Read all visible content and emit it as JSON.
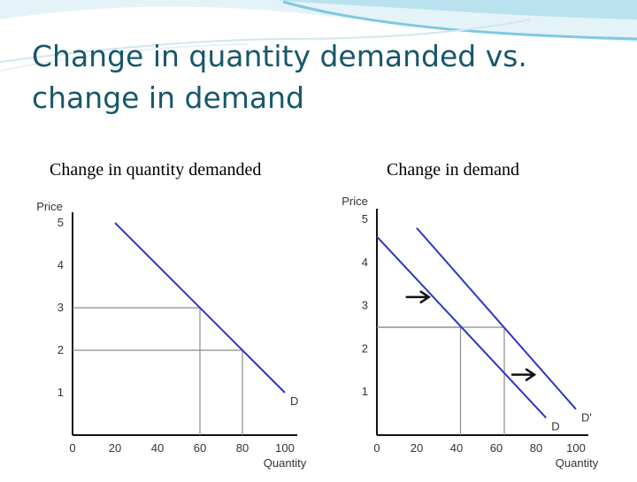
{
  "slide": {
    "title": "Change in quantity demanded vs. change in demand",
    "subtitle_left": "Change in quantity demanded",
    "subtitle_right": "Change in demand",
    "colors": {
      "title": "#17576a",
      "curve": "#2b35c8",
      "guide": "#8c8c8c",
      "accent_wave": "#7ec9e0"
    }
  },
  "chart_data": [
    {
      "type": "line",
      "ylabel": "Price",
      "xlabel": "Quantity",
      "xlim": [
        0,
        100
      ],
      "ylim": [
        0,
        5
      ],
      "x_ticks": [
        "0",
        "20",
        "40",
        "60",
        "80",
        "100"
      ],
      "y_ticks": [
        "1",
        "2",
        "3",
        "4",
        "5"
      ],
      "grid": false,
      "series": [
        {
          "name": "D",
          "x": [
            20,
            100
          ],
          "y": [
            5,
            1
          ]
        }
      ],
      "guides": [
        {
          "x": 60,
          "y": 3
        },
        {
          "x": 80,
          "y": 2
        }
      ],
      "arrows": []
    },
    {
      "type": "line",
      "ylabel": "Price",
      "xlabel": "Quantity",
      "xlim": [
        0,
        100
      ],
      "ylim": [
        0,
        5
      ],
      "x_ticks": [
        "0",
        "20",
        "40",
        "60",
        "80",
        "100"
      ],
      "y_ticks": [
        "1",
        "2",
        "3",
        "4",
        "5"
      ],
      "grid": false,
      "series": [
        {
          "name": "D",
          "x": [
            0,
            85
          ],
          "y": [
            4.6,
            0.4
          ]
        },
        {
          "name": "D'",
          "x": [
            20,
            100
          ],
          "y": [
            4.8,
            0.6
          ]
        }
      ],
      "guides": [
        {
          "x": 42,
          "y": 2.5
        },
        {
          "x": 64,
          "y": 2.5
        }
      ],
      "arrows": [
        {
          "x": 15,
          "y": 3.2
        },
        {
          "x": 68,
          "y": 1.4
        }
      ]
    }
  ]
}
